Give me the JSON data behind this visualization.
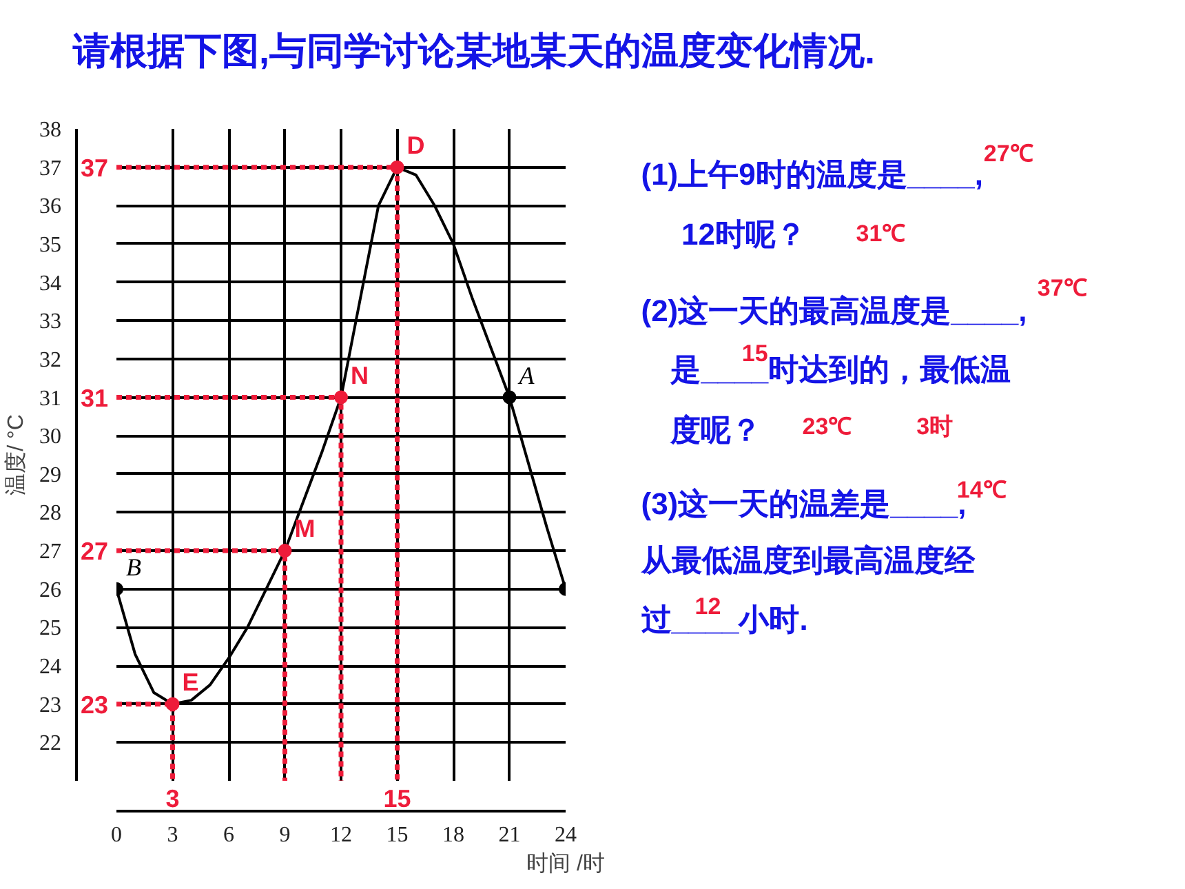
{
  "chart_data": {
    "type": "line",
    "title": "请根据下图,与同学讨论某地某天的温度变化情况.",
    "xlabel": "时间 /时",
    "ylabel": "温度/ °C",
    "xlim": [
      0,
      24
    ],
    "ylim": [
      21,
      38
    ],
    "xticks": [
      0,
      3,
      6,
      9,
      12,
      15,
      18,
      21,
      24
    ],
    "yticks": [
      22,
      23,
      24,
      25,
      26,
      27,
      28,
      29,
      30,
      31,
      32,
      33,
      34,
      35,
      36,
      37,
      38
    ],
    "grid": true,
    "series": [
      {
        "color": "#000000",
        "marker": "none",
        "x": [
          0,
          1,
          2,
          3,
          4,
          5,
          6,
          7,
          8,
          9,
          10,
          11,
          12,
          13,
          14,
          15,
          16,
          17,
          18,
          19,
          20,
          21,
          22,
          23,
          24
        ],
        "values": [
          26,
          24.3,
          23.3,
          23,
          23.1,
          23.5,
          24.2,
          25,
          26,
          27,
          28.3,
          29.6,
          31,
          33.5,
          36,
          37,
          36.8,
          36,
          35,
          33.6,
          32.3,
          31,
          29.3,
          27.6,
          26
        ]
      },
      {
        "type": "line",
        "color": "#ee1c3a",
        "marker": "none",
        "line_style": "dashed",
        "x": [
          0,
          3,
          3
        ],
        "values": [
          23,
          23,
          21
        ]
      },
      {
        "type": "line",
        "color": "#ee1c3a",
        "marker": "none",
        "line_style": "dashed",
        "x": [
          0,
          9,
          9
        ],
        "values": [
          27,
          27,
          21
        ]
      },
      {
        "type": "line",
        "color": "#ee1c3a",
        "marker": "none",
        "line_style": "dashed",
        "x": [
          0,
          12,
          12
        ],
        "values": [
          31,
          31,
          21
        ]
      },
      {
        "type": "line",
        "color": "#ee1c3a",
        "marker": "none",
        "line_style": "dashed",
        "x": [
          0,
          15,
          15
        ],
        "values": [
          37,
          37,
          21
        ]
      },
      {
        "type": "scatter",
        "color": "#000000",
        "marker": "circle",
        "x": [
          0,
          21,
          24
        ],
        "values": [
          26,
          31,
          26
        ]
      },
      {
        "type": "scatter",
        "color": "#ee1c3a",
        "marker": "circle",
        "x": [
          3,
          9,
          12,
          15
        ],
        "values": [
          23,
          27,
          31,
          37
        ]
      }
    ],
    "annotations": [
      {
        "text": "D",
        "x": 15,
        "y": 37
      },
      {
        "text": "N",
        "x": 12,
        "y": 31
      },
      {
        "text": "M",
        "x": 9,
        "y": 27
      },
      {
        "text": "E",
        "x": 3,
        "y": 23
      },
      {
        "text": "A",
        "x": 21,
        "y": 31
      },
      {
        "text": "B",
        "x": 0,
        "y": 26
      },
      {
        "text": "37",
        "x": 0,
        "y": 37
      },
      {
        "text": "31",
        "x": 0,
        "y": 31
      },
      {
        "text": "27",
        "x": 0,
        "y": 27
      },
      {
        "text": "23",
        "x": 0,
        "y": 23
      },
      {
        "text": "3",
        "x": 3,
        "y": 21
      },
      {
        "text": "15",
        "x": 15,
        "y": 21
      },
      "(1)上午9时的温度是____,",
      "12时呢？",
      "(2)这一天的最高温度是____,",
      "是____时达到的，最低温",
      "度呢？",
      "(3)这一天的温差是____,",
      "从最低温度到最高温度经",
      "过____小时.",
      "27℃",
      "31℃",
      "37℃",
      "15",
      "23℃",
      "3时",
      "14℃",
      "12"
    ]
  }
}
